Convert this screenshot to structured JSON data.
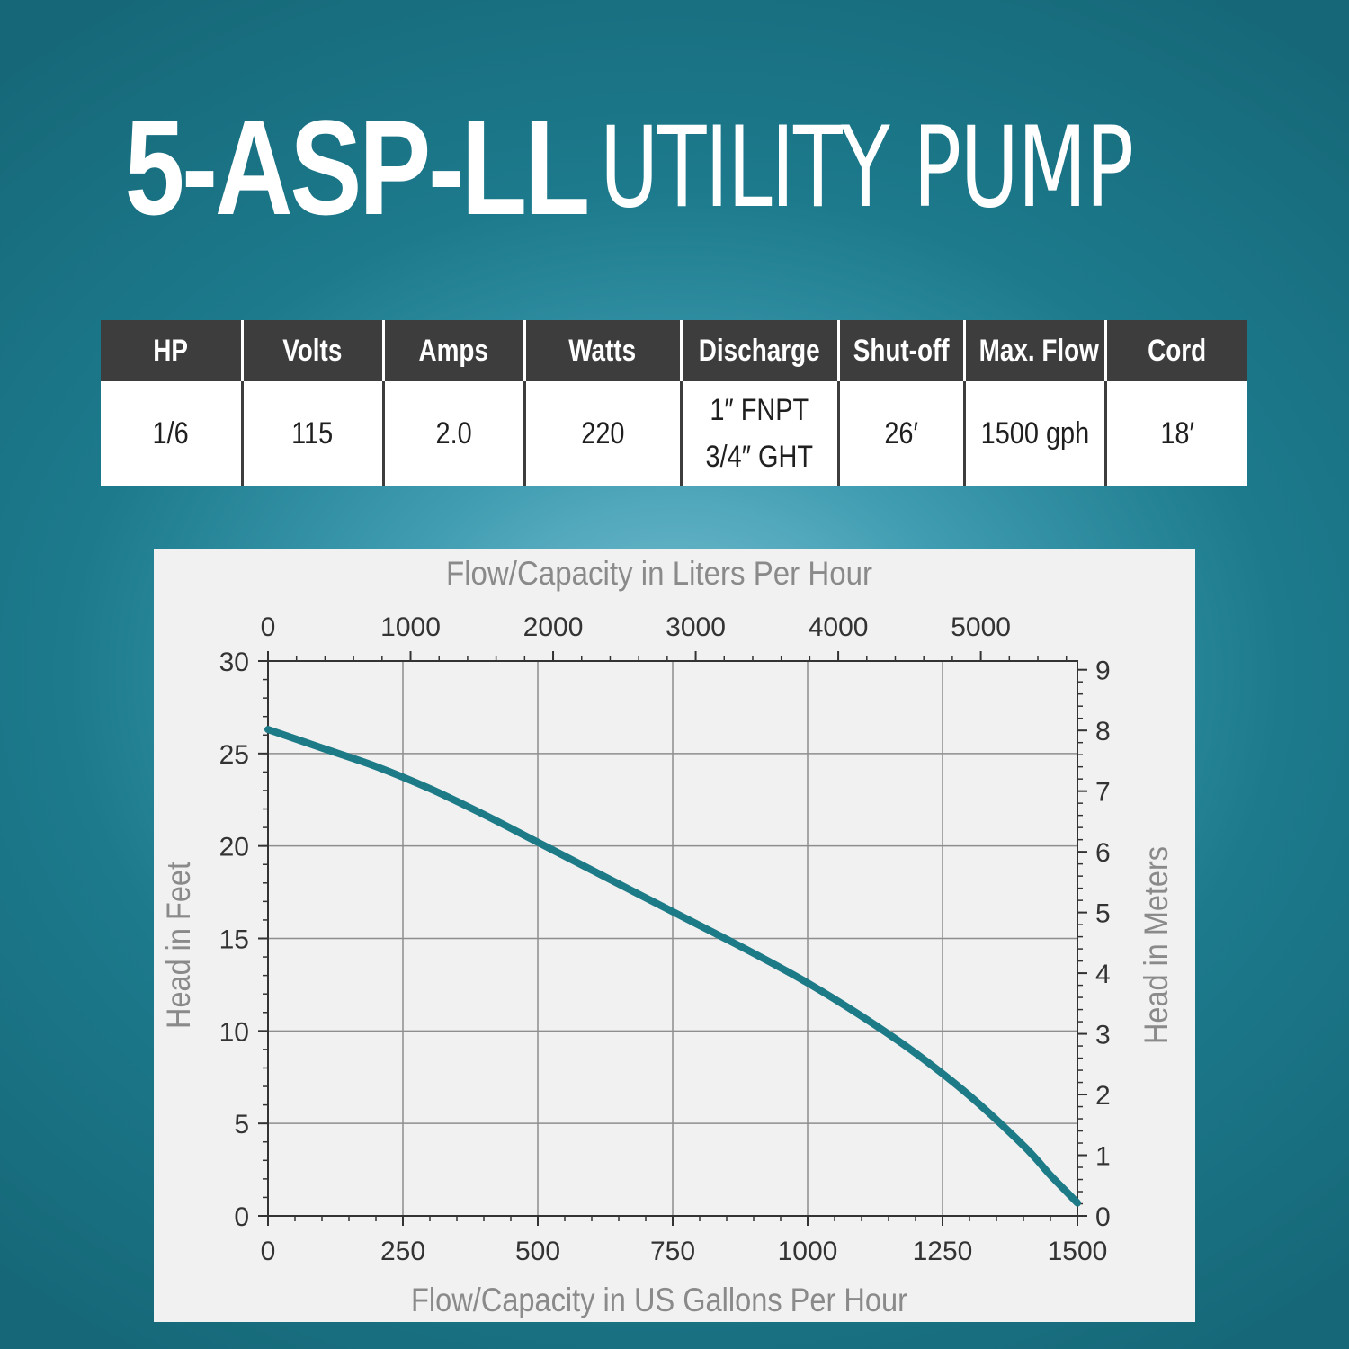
{
  "title": {
    "model": "5-ASP-LL",
    "product": "UTILITY PUMP"
  },
  "specs": {
    "headers": [
      "HP",
      "Volts",
      "Amps",
      "Watts",
      "Discharge",
      "Shut-off",
      "Max. Flow",
      "Cord"
    ],
    "values": [
      "1/6",
      "115",
      "2.0",
      "220",
      "1″ FNPT\n3/4″ GHT",
      "26′",
      "1500 gph",
      "18′"
    ]
  },
  "chart_data": {
    "type": "line",
    "top_axis_title": "Flow/Capacity in Liters Per Hour",
    "xlabel": "Flow/Capacity in US Gallons Per Hour",
    "ylabel": "Head in Feet",
    "right_axis_title": "Head in Meters",
    "xlim": [
      0,
      1500
    ],
    "ylim": [
      0,
      30
    ],
    "x_ticks": [
      0,
      250,
      500,
      750,
      1000,
      1250,
      1500
    ],
    "y_ticks": [
      0,
      5,
      10,
      15,
      20,
      25,
      30
    ],
    "top_ticks": [
      0,
      1000,
      2000,
      3000,
      4000,
      5000
    ],
    "top_ticks_unit_per_x": 3.785,
    "right_ticks": [
      0,
      1,
      2,
      3,
      4,
      5,
      6,
      7,
      8,
      9
    ],
    "right_ticks_unit_per_y": 0.3048,
    "grid": true,
    "line_color": "#1d7b87",
    "series": [
      {
        "x": [
          0,
          100,
          200,
          300,
          400,
          500,
          600,
          700,
          800,
          900,
          1000,
          1100,
          1200,
          1300,
          1400,
          1450,
          1480,
          1500
        ],
        "values": [
          26.3,
          25.3,
          24.3,
          23.1,
          21.7,
          20.2,
          18.7,
          17.2,
          15.7,
          14.2,
          12.6,
          10.8,
          8.8,
          6.5,
          3.8,
          2.2,
          1.3,
          0.7
        ]
      }
    ]
  }
}
